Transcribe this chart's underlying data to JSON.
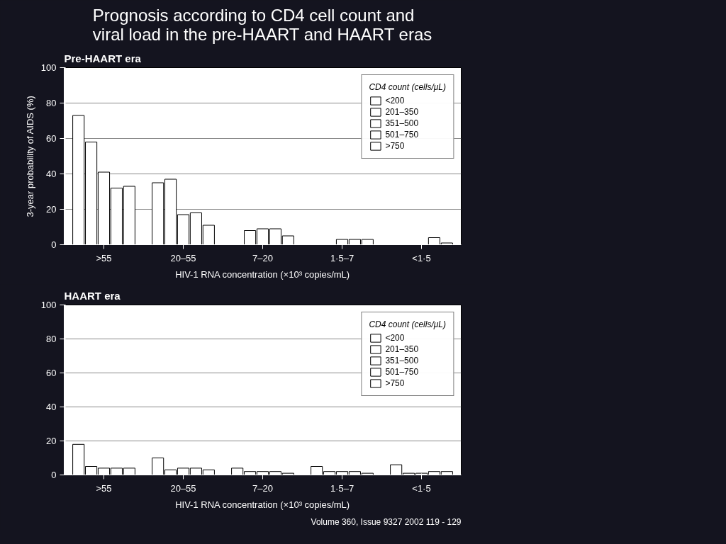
{
  "chart_data": [
    {
      "type": "bar",
      "title": "Prognosis according to CD4 cell count and viral load in the pre-HAART and HAART eras",
      "subtitle": "Pre-HAART era",
      "xlabel": "HIV-1 RNA concentration (×10³ copies/mL)",
      "ylabel": "3-year probability of AIDS (%)",
      "legend_title": "CD4 count (cells/μL)",
      "categories": [
        ">55",
        "20–55",
        "7–20",
        "1·5–7",
        "<1·5"
      ],
      "ylim": [
        0,
        100
      ],
      "yticks": [
        0,
        20,
        40,
        60,
        80,
        100
      ],
      "grid": "y",
      "legend": "top right",
      "series": [
        {
          "name": "<200",
          "color": "#ffffff",
          "values": [
            73,
            35,
            null,
            null,
            null
          ]
        },
        {
          "name": "201–350",
          "color": "#ffffff",
          "values": [
            58,
            37,
            8,
            null,
            null
          ]
        },
        {
          "name": "351–500",
          "color": "#ffffff",
          "values": [
            41,
            17,
            9,
            3,
            null
          ]
        },
        {
          "name": "501–750",
          "color": "#ffffff",
          "values": [
            32,
            18,
            9,
            3,
            4
          ]
        },
        {
          "name": ">750",
          "color": "#ffffff",
          "values": [
            33,
            11,
            5,
            3,
            1
          ]
        }
      ]
    },
    {
      "type": "bar",
      "title": "HAART era",
      "xlabel": "HIV-1 RNA concentration (×10³ copies/mL)",
      "legend_title": "CD4 count (cells/μL)",
      "categories": [
        ">55",
        "20–55",
        "7–20",
        "1·5–7",
        "<1·5"
      ],
      "ylim": [
        0,
        100
      ],
      "yticks": [
        0,
        20,
        40,
        60,
        80,
        100
      ],
      "grid": "y",
      "legend": "top right",
      "annotations": [
        "Volume 360, Issue 9327 2002 119 - 129"
      ],
      "series": [
        {
          "name": "<200",
          "color": "#ffffff",
          "values": [
            18,
            10,
            4,
            5,
            6
          ]
        },
        {
          "name": "201–350",
          "color": "#ffffff",
          "values": [
            5,
            3,
            2,
            2,
            1
          ]
        },
        {
          "name": "351–500",
          "color": "#ffffff",
          "values": [
            4,
            4,
            2,
            2,
            1
          ]
        },
        {
          "name": "501–750",
          "color": "#ffffff",
          "values": [
            4,
            4,
            2,
            2,
            2
          ]
        },
        {
          "name": ">750",
          "color": "#ffffff",
          "values": [
            4,
            3,
            1,
            1,
            2
          ]
        }
      ]
    }
  ]
}
